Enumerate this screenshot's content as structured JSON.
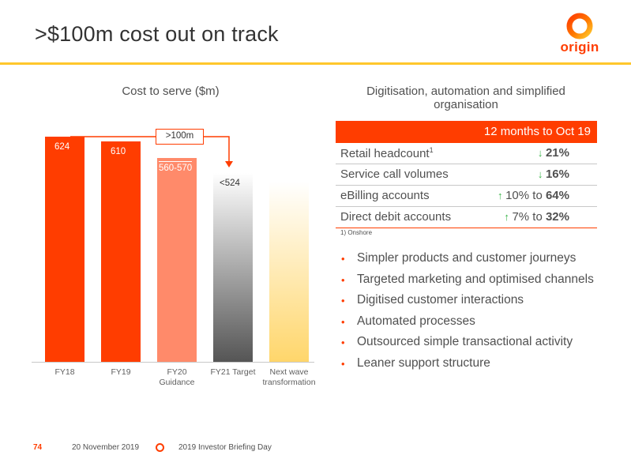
{
  "title": ">$100m cost out on track",
  "logo_text": "origin",
  "colors": {
    "accent": "#ff3d00",
    "rule": "#ffc72c",
    "positive": "#3ab54a"
  },
  "chart_data": {
    "type": "bar",
    "title": "Cost to serve ($m)",
    "categories": [
      "FY18",
      "FY19",
      "FY20 Guidance",
      "FY21 Target",
      "Next wave transformation"
    ],
    "category_lines": [
      [
        "FY18"
      ],
      [
        "FY19"
      ],
      [
        "FY20",
        "Guidance"
      ],
      [
        "FY21 Target"
      ],
      [
        "Next wave",
        "transformation"
      ]
    ],
    "values": [
      624,
      610,
      565,
      524,
      500
    ],
    "value_labels": [
      "624",
      "610",
      "560-570",
      "<524",
      ""
    ],
    "callout": ">100m",
    "xlabel": "",
    "ylabel": ""
  },
  "right": {
    "title": "Digitisation, automation and simplified organisation",
    "table_header": "12 months to Oct 19",
    "rows": [
      {
        "label": "Retail headcount",
        "sup": "1",
        "arrow": "down",
        "prefix": "",
        "value": "21%"
      },
      {
        "label": "Service call volumes",
        "sup": "",
        "arrow": "down",
        "prefix": "",
        "value": "16%"
      },
      {
        "label": "eBilling accounts",
        "sup": "",
        "arrow": "up",
        "prefix": "10% to ",
        "value": "64%"
      },
      {
        "label": "Direct debit accounts",
        "sup": "",
        "arrow": "up",
        "prefix": "7% to ",
        "value": "32%"
      }
    ],
    "footnote": "1)  Onshore",
    "bullets": [
      "Simpler products and customer journeys",
      "Targeted marketing and optimised channels",
      "Digitised customer interactions",
      "Automated processes",
      "Outsourced simple transactional activity",
      "Leaner support structure"
    ]
  },
  "footer": {
    "page_number": "74",
    "date": "20 November 2019",
    "event": "2019 Investor Briefing Day"
  }
}
